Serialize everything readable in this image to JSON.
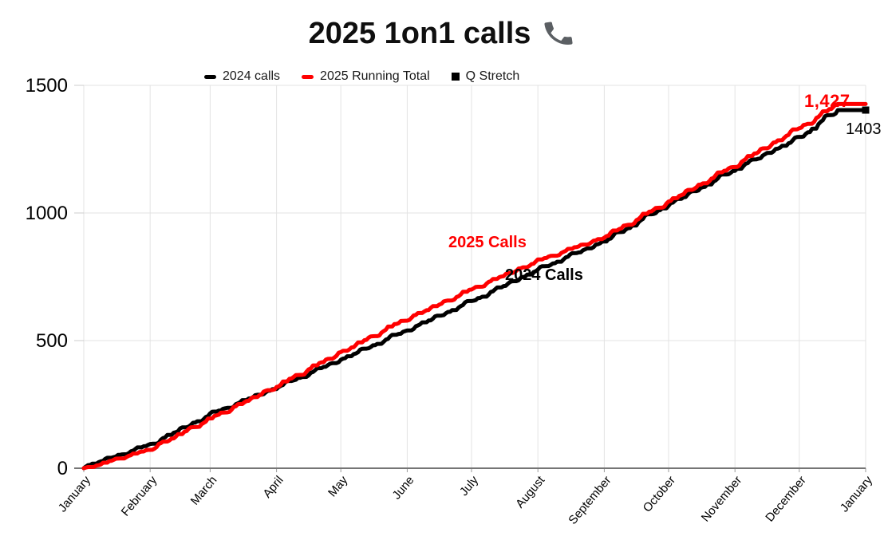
{
  "title": {
    "text": "2025 1on1 calls",
    "emoji": "📞",
    "icon": "phone-receiver-icon"
  },
  "legend": {
    "items": [
      {
        "label": "2024 calls",
        "marker": "dash",
        "color": "#000000"
      },
      {
        "label": "2025 Running Total",
        "marker": "dash",
        "color": "#ff0000"
      },
      {
        "label": "Q Stretch",
        "marker": "square",
        "color": "#000000"
      }
    ]
  },
  "annotations": {
    "series_2025": "2025 Calls",
    "series_2024": "2024 Calls",
    "final_2025": "1,427",
    "final_2024": "1403"
  },
  "colors": {
    "series_2025": "#ff0000",
    "series_2024": "#000000",
    "q_stretch": "#000000",
    "gridline": "#e3e3e3",
    "axis_line": "#757575",
    "tick": "#9a9a9a",
    "y_tick_dash": "#cccccc",
    "label_text": "#000000"
  },
  "chart_data": {
    "type": "line",
    "title": "2025 1on1 calls 📞",
    "xlabel": "",
    "ylabel": "",
    "grid": true,
    "legend_position": "top",
    "categories": [
      "January",
      "February",
      "March",
      "April",
      "May",
      "June",
      "July",
      "August",
      "September",
      "October",
      "November",
      "December",
      "January"
    ],
    "month_days": [
      0,
      31,
      59,
      90,
      120,
      151,
      181,
      212,
      243,
      273,
      304,
      334,
      365
    ],
    "x_domain_days": 365,
    "yticks": [
      0,
      500,
      1000,
      1500
    ],
    "ylim": [
      0,
      1500
    ],
    "series": [
      {
        "name": "2024 calls",
        "color": "#000000",
        "style": "cumulative-daily-line",
        "checkpoints": [
          [
            0,
            0
          ],
          [
            31,
            95
          ],
          [
            59,
            215
          ],
          [
            90,
            310
          ],
          [
            120,
            425
          ],
          [
            151,
            540
          ],
          [
            181,
            655
          ],
          [
            212,
            778
          ],
          [
            243,
            888
          ],
          [
            273,
            1028
          ],
          [
            304,
            1165
          ],
          [
            334,
            1298
          ],
          [
            352,
            1403
          ],
          [
            365,
            1403
          ]
        ],
        "final_value": 1403
      },
      {
        "name": "2025 Running Total",
        "color": "#ff0000",
        "style": "cumulative-daily-line",
        "checkpoints": [
          [
            0,
            0
          ],
          [
            31,
            72
          ],
          [
            59,
            195
          ],
          [
            90,
            318
          ],
          [
            120,
            455
          ],
          [
            151,
            578
          ],
          [
            181,
            700
          ],
          [
            212,
            818
          ],
          [
            243,
            903
          ],
          [
            273,
            1045
          ],
          [
            304,
            1180
          ],
          [
            334,
            1332
          ],
          [
            353,
            1427
          ],
          [
            365,
            1427
          ]
        ],
        "final_value": 1427
      },
      {
        "name": "Q Stretch",
        "color": "#000000",
        "style": "point-square",
        "point": [
          365,
          1403
        ]
      }
    ]
  }
}
